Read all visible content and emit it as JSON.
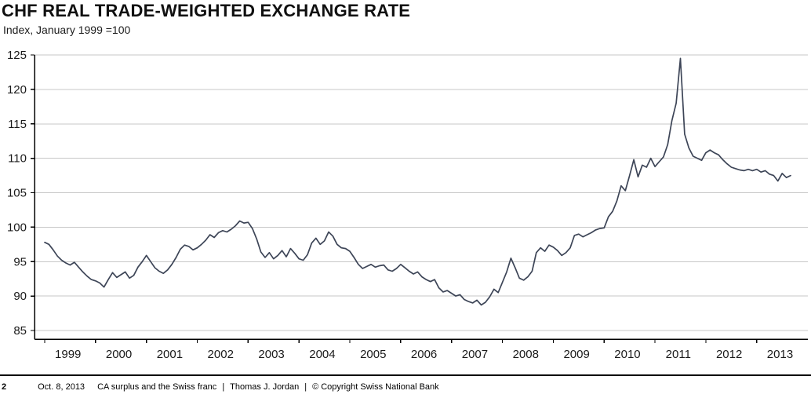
{
  "header": {
    "title": "CHF REAL TRADE-WEIGHTED EXCHANGE RATE",
    "subtitle": "Index, January 1999 =100"
  },
  "chart_data": {
    "type": "line",
    "title": "CHF REAL TRADE-WEIGHTED EXCHANGE RATE",
    "subtitle": "Index, January 1999 =100",
    "xlabel": "",
    "ylabel": "Index, January 1999 =100",
    "ylim": [
      85,
      125
    ],
    "yticks": [
      85,
      90,
      95,
      100,
      105,
      110,
      115,
      120,
      125
    ],
    "grid": true,
    "legend": "none",
    "x_start": "1999-01",
    "x_end": "2013-09",
    "x_frequency": "monthly",
    "year_labels": [
      "1999",
      "2000",
      "2001",
      "2002",
      "2003",
      "2004",
      "2005",
      "2006",
      "2007",
      "2008",
      "2009",
      "2010",
      "2011",
      "2012",
      "2013"
    ],
    "line_color": "#3d4557",
    "grid_color": "#c7c7c7",
    "axis_color": "#000000",
    "values": [
      97.8,
      97.5,
      96.7,
      95.8,
      95.2,
      94.8,
      94.5,
      94.9,
      94.2,
      93.5,
      92.9,
      92.4,
      92.2,
      91.9,
      91.3,
      92.4,
      93.4,
      92.7,
      93.1,
      93.5,
      92.6,
      93.0,
      94.2,
      95.0,
      95.9,
      95.0,
      94.1,
      93.6,
      93.3,
      93.8,
      94.6,
      95.6,
      96.8,
      97.4,
      97.2,
      96.7,
      97.0,
      97.5,
      98.1,
      98.9,
      98.5,
      99.2,
      99.5,
      99.3,
      99.7,
      100.2,
      100.9,
      100.6,
      100.7,
      99.8,
      98.3,
      96.4,
      95.6,
      96.3,
      95.4,
      95.9,
      96.6,
      95.7,
      96.9,
      96.2,
      95.4,
      95.2,
      96.0,
      97.7,
      98.4,
      97.5,
      98.0,
      99.3,
      98.7,
      97.5,
      97.0,
      96.9,
      96.5,
      95.6,
      94.6,
      94.0,
      94.3,
      94.6,
      94.2,
      94.4,
      94.5,
      93.8,
      93.6,
      94.0,
      94.6,
      94.1,
      93.6,
      93.2,
      93.5,
      92.8,
      92.4,
      92.1,
      92.4,
      91.2,
      90.6,
      90.8,
      90.4,
      90.0,
      90.2,
      89.5,
      89.2,
      89.0,
      89.4,
      88.7,
      89.1,
      89.9,
      91.0,
      90.5,
      92.0,
      93.5,
      95.5,
      94.1,
      92.6,
      92.3,
      92.8,
      93.6,
      96.3,
      97.0,
      96.5,
      97.4,
      97.1,
      96.6,
      95.9,
      96.3,
      97.0,
      98.8,
      99.0,
      98.6,
      98.9,
      99.2,
      99.6,
      99.8,
      99.9,
      101.5,
      102.3,
      103.8,
      106.0,
      105.3,
      107.5,
      109.8,
      107.3,
      109.0,
      108.7,
      110.0,
      108.8,
      109.5,
      110.2,
      112.0,
      115.5,
      118.0,
      124.5,
      113.5,
      111.5,
      110.3,
      110.0,
      109.7,
      110.8,
      111.2,
      110.8,
      110.5,
      109.8,
      109.2,
      108.7,
      108.5,
      108.3,
      108.2,
      108.4,
      108.2,
      108.4,
      108.0,
      108.2,
      107.7,
      107.5,
      106.7,
      107.8,
      107.2,
      107.5
    ]
  },
  "footer": {
    "page_number": "2",
    "date": "Oct. 8, 2013",
    "event_title": "CA surplus and the Swiss franc",
    "separator": "|",
    "author": "Thomas J. Jordan",
    "copyright": "© Copyright Swiss National Bank"
  }
}
